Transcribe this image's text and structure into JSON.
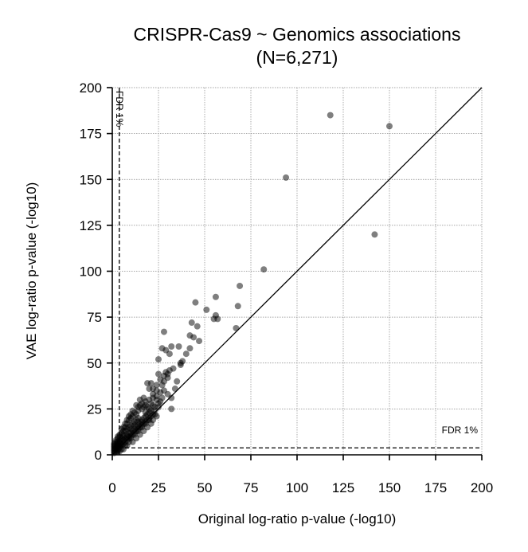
{
  "chart_data": {
    "type": "scatter",
    "title": "CRISPR-Cas9 ~ Genomics associations",
    "subtitle": "(N=6,271)",
    "xlabel": "Original log-ratio p-value (-log10)",
    "ylabel": "VAE log-ratio p-value (-log10)",
    "xlim": [
      0,
      200
    ],
    "ylim": [
      0,
      200
    ],
    "xticks": [
      0,
      25,
      50,
      75,
      100,
      125,
      150,
      175,
      200
    ],
    "yticks": [
      0,
      25,
      50,
      75,
      100,
      125,
      150,
      175,
      200
    ],
    "grid": true,
    "diagonal": true,
    "fdr_threshold": 3.8,
    "fdr_x_label": "FDR 1%",
    "fdr_y_label": "FDR 1%",
    "point_color": "#000000",
    "point_opacity": 0.5,
    "points": [
      [
        118,
        185
      ],
      [
        150,
        179
      ],
      [
        94,
        151
      ],
      [
        142,
        120
      ],
      [
        82,
        101
      ],
      [
        69,
        92
      ],
      [
        45,
        83
      ],
      [
        56,
        86
      ],
      [
        68,
        81
      ],
      [
        51,
        79
      ],
      [
        56,
        76
      ],
      [
        55,
        74
      ],
      [
        57,
        74
      ],
      [
        67,
        69
      ],
      [
        43,
        72
      ],
      [
        46,
        70
      ],
      [
        42,
        65
      ],
      [
        28,
        67
      ],
      [
        44,
        64
      ],
      [
        47,
        62
      ],
      [
        32,
        59
      ],
      [
        36,
        59
      ],
      [
        27,
        58
      ],
      [
        29,
        57
      ],
      [
        42,
        58
      ],
      [
        40,
        55
      ],
      [
        31,
        55
      ],
      [
        25,
        52
      ],
      [
        37,
        50
      ],
      [
        37,
        49
      ],
      [
        38,
        51
      ],
      [
        33,
        47
      ],
      [
        31,
        46
      ],
      [
        29,
        45
      ],
      [
        25,
        44
      ],
      [
        28,
        43
      ],
      [
        19,
        39
      ],
      [
        30,
        42
      ],
      [
        32,
        25
      ],
      [
        27,
        38
      ],
      [
        20,
        36
      ],
      [
        22,
        33
      ],
      [
        24,
        30
      ],
      [
        26,
        29
      ],
      [
        17,
        31
      ],
      [
        21,
        28
      ],
      [
        15,
        30
      ],
      [
        18,
        27
      ],
      [
        23,
        24
      ],
      [
        16,
        25
      ],
      [
        14,
        26
      ],
      [
        12,
        23
      ],
      [
        13,
        22
      ],
      [
        19,
        22
      ],
      [
        11,
        21
      ],
      [
        10,
        20
      ],
      [
        17,
        20
      ],
      [
        9,
        19
      ],
      [
        14,
        18
      ],
      [
        8,
        17
      ],
      [
        12,
        16
      ],
      [
        7,
        15
      ],
      [
        10,
        14
      ],
      [
        6,
        13
      ],
      [
        9,
        12
      ],
      [
        5,
        12
      ],
      [
        8,
        11
      ],
      [
        4,
        10
      ],
      [
        7,
        9
      ],
      [
        3,
        9
      ],
      [
        6,
        8
      ],
      [
        2,
        7
      ],
      [
        5,
        6
      ],
      [
        4,
        5
      ],
      [
        3,
        5
      ],
      [
        2,
        4
      ],
      [
        1,
        3
      ],
      [
        3,
        2
      ],
      [
        2,
        1.5
      ],
      [
        1,
        1
      ],
      [
        4,
        2
      ],
      [
        6,
        3
      ],
      [
        8,
        5
      ],
      [
        11,
        7
      ],
      [
        13,
        9
      ],
      [
        15,
        11
      ],
      [
        17,
        13
      ],
      [
        19,
        15
      ],
      [
        21,
        17
      ],
      [
        22,
        19
      ],
      [
        24,
        21
      ],
      [
        16,
        19
      ],
      [
        18,
        23
      ],
      [
        20,
        25
      ],
      [
        22,
        27
      ],
      [
        13,
        15
      ],
      [
        11,
        13
      ],
      [
        9,
        10
      ],
      [
        14,
        20
      ],
      [
        12,
        18
      ],
      [
        10,
        16
      ],
      [
        8,
        14
      ],
      [
        6,
        11
      ],
      [
        5,
        9
      ],
      [
        4,
        7
      ],
      [
        3,
        6
      ],
      [
        2,
        5
      ],
      [
        1,
        4
      ],
      [
        5,
        3
      ],
      [
        7,
        5
      ],
      [
        9,
        7
      ],
      [
        10,
        9
      ],
      [
        12,
        11
      ],
      [
        14,
        13
      ],
      [
        16,
        15
      ],
      [
        18,
        17
      ],
      [
        20,
        19
      ],
      [
        23,
        22
      ],
      [
        25,
        26
      ],
      [
        27,
        31
      ],
      [
        26,
        34
      ],
      [
        24,
        35
      ],
      [
        22,
        31
      ],
      [
        20,
        30
      ],
      [
        18,
        29
      ],
      [
        16,
        28
      ],
      [
        14,
        24
      ],
      [
        15,
        17
      ],
      [
        13,
        19
      ],
      [
        11,
        17
      ],
      [
        9,
        15
      ],
      [
        7,
        13
      ],
      [
        6,
        10
      ],
      [
        4,
        8
      ],
      [
        3,
        7
      ],
      [
        2,
        6
      ],
      [
        1,
        5
      ],
      [
        1,
        2
      ],
      [
        2,
        2
      ],
      [
        2,
        3
      ],
      [
        3,
        4
      ],
      [
        4,
        4
      ],
      [
        5,
        5
      ],
      [
        6,
        6
      ],
      [
        7,
        7
      ],
      [
        8,
        8
      ],
      [
        9,
        9
      ],
      [
        10,
        10
      ],
      [
        11,
        11
      ],
      [
        12,
        12
      ],
      [
        13,
        13
      ],
      [
        14,
        14
      ],
      [
        15,
        15
      ],
      [
        16,
        16
      ],
      [
        17,
        17
      ],
      [
        18,
        18
      ],
      [
        19,
        19
      ],
      [
        20,
        20
      ],
      [
        21,
        21
      ],
      [
        22,
        22
      ],
      [
        10,
        12
      ],
      [
        12,
        14
      ],
      [
        14,
        16
      ],
      [
        16,
        18
      ],
      [
        18,
        21
      ],
      [
        20,
        23
      ],
      [
        8,
        10
      ],
      [
        6,
        8
      ],
      [
        4,
        6
      ],
      [
        3,
        3
      ],
      [
        1,
        6
      ],
      [
        2,
        8
      ],
      [
        3,
        10
      ],
      [
        4,
        11
      ],
      [
        5,
        14
      ],
      [
        6,
        15
      ],
      [
        7,
        17
      ],
      [
        8,
        19
      ],
      [
        9,
        21
      ],
      [
        10,
        22
      ],
      [
        11,
        24
      ],
      [
        13,
        27
      ],
      [
        15,
        27
      ],
      [
        17,
        26
      ],
      [
        19,
        26
      ],
      [
        21,
        24
      ],
      [
        23,
        26
      ],
      [
        25,
        28
      ],
      [
        22,
        36
      ],
      [
        21,
        39
      ],
      [
        28,
        40
      ],
      [
        30,
        44
      ],
      [
        26,
        41
      ],
      [
        24,
        38
      ],
      [
        32,
        31
      ],
      [
        30,
        33
      ],
      [
        28,
        35
      ],
      [
        24,
        32
      ],
      [
        35,
        40
      ],
      [
        34,
        36
      ]
    ]
  }
}
